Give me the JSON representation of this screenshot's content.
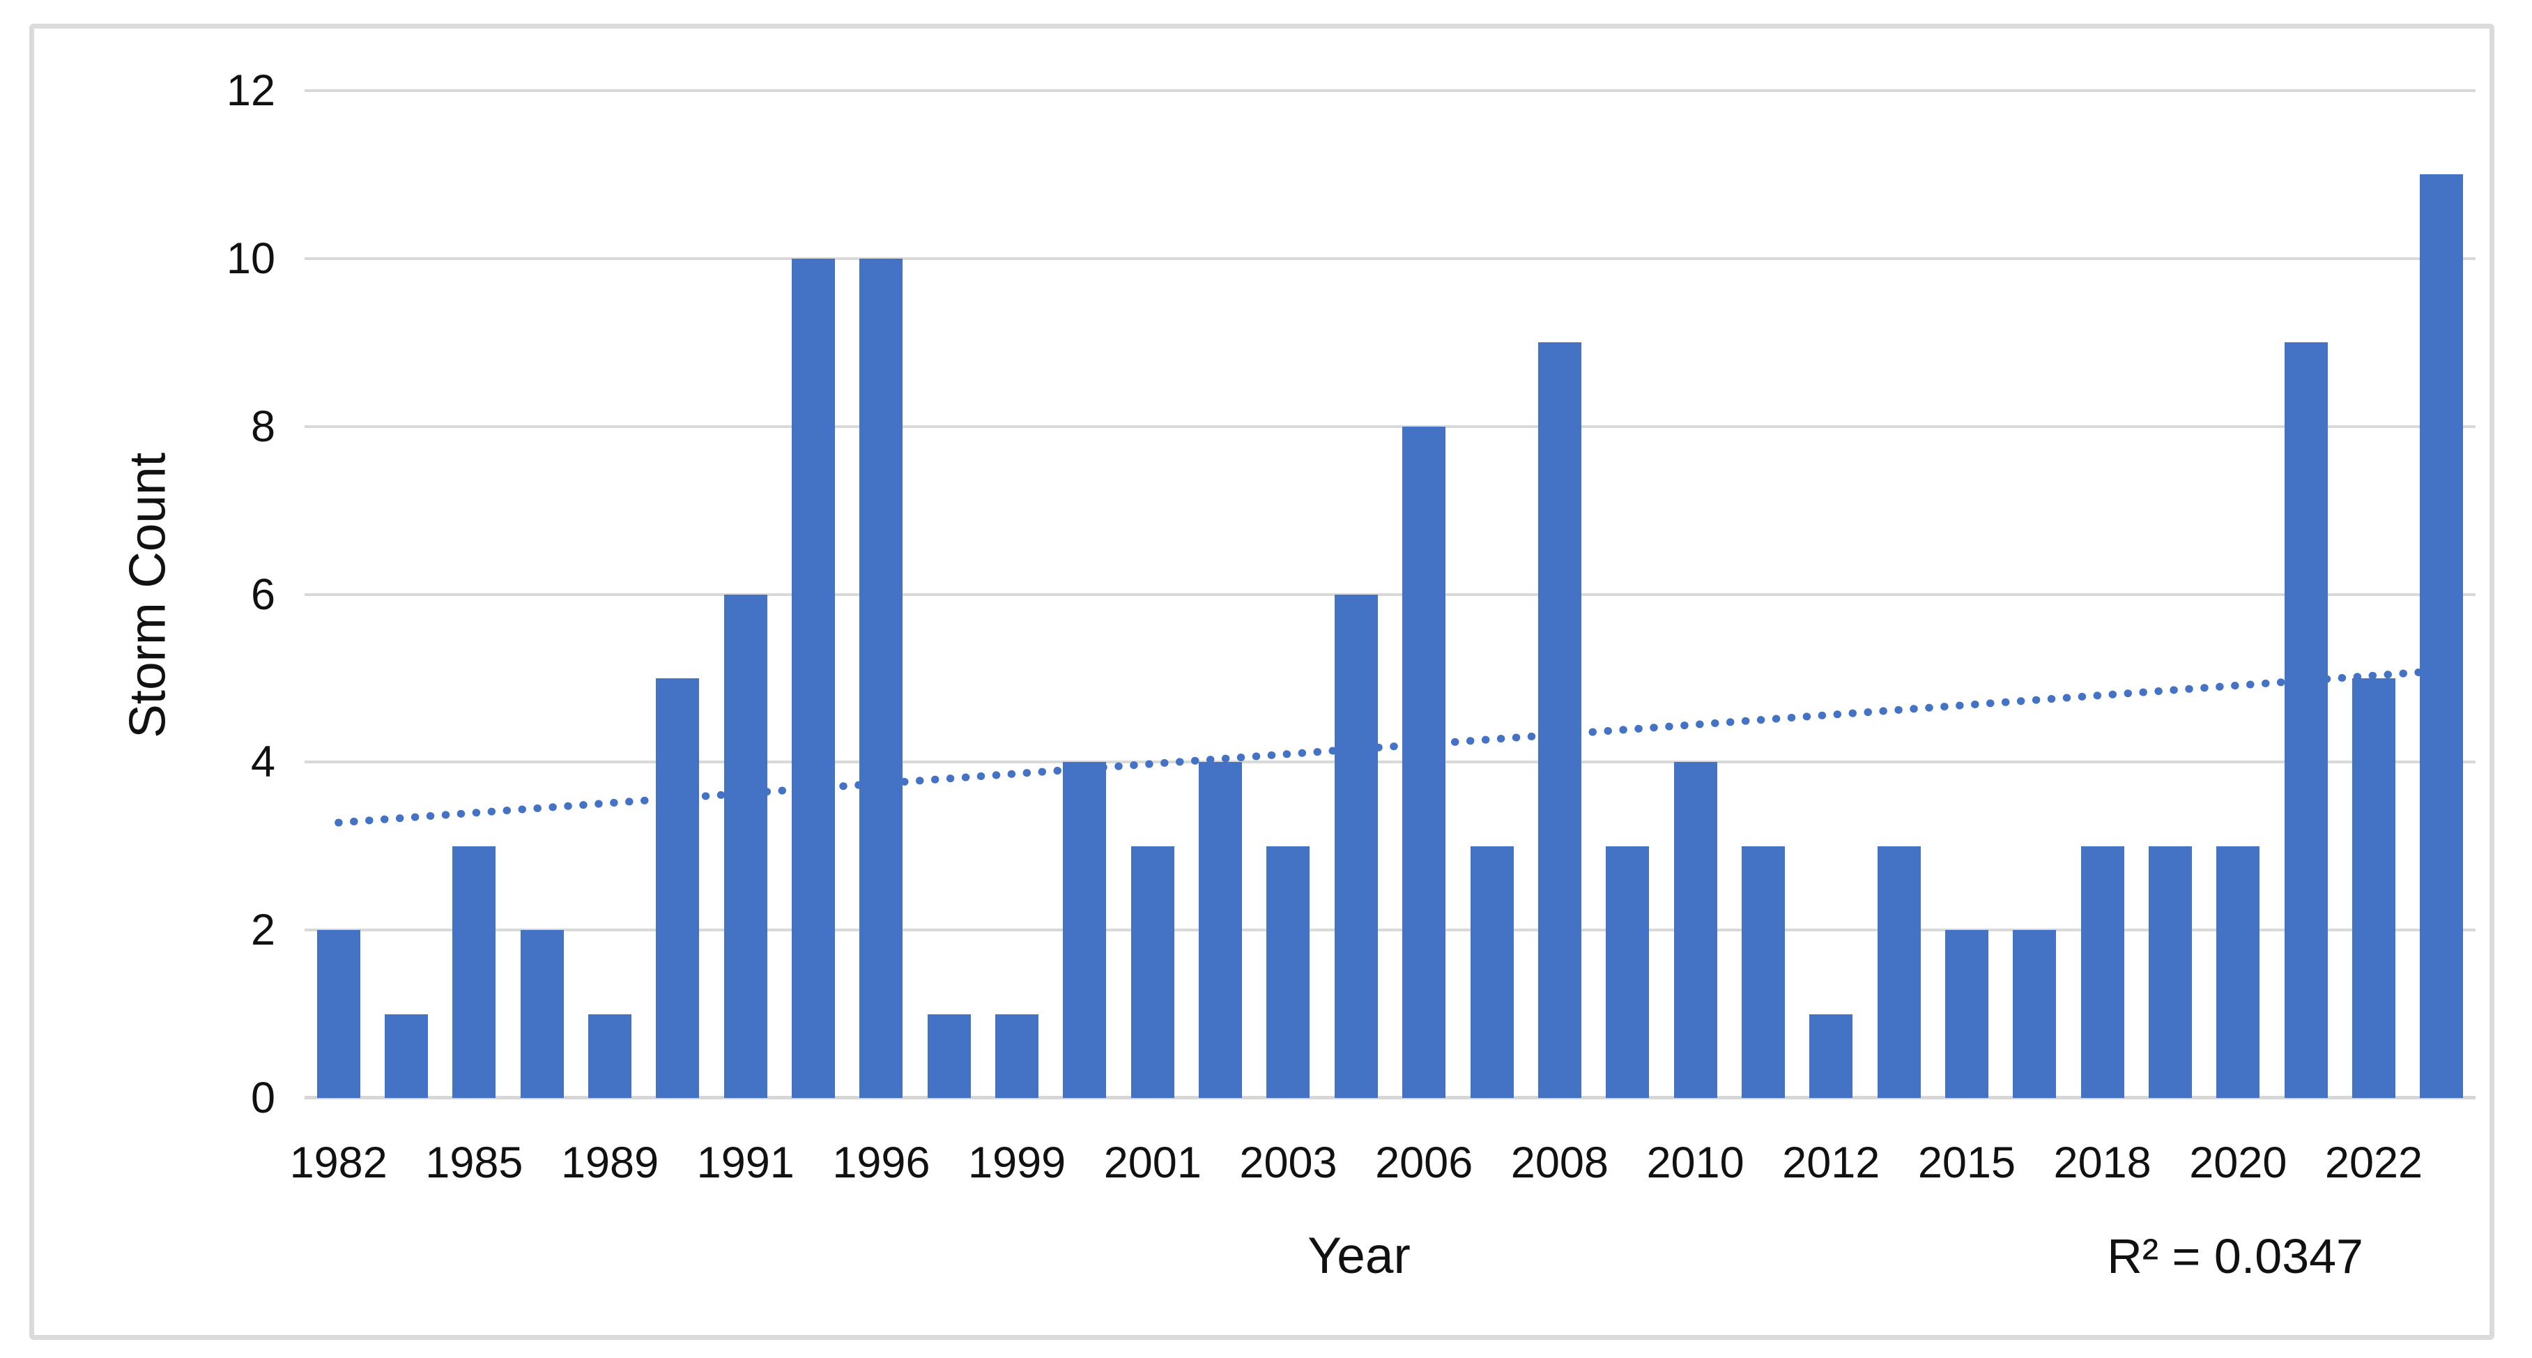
{
  "chart_data": {
    "type": "bar",
    "title": "",
    "ylabel": "Storm Count",
    "xlabel": "Year",
    "ylim": [
      0,
      12
    ],
    "yticks": [
      0,
      2,
      4,
      6,
      8,
      10,
      12
    ],
    "bar_count": 32,
    "values": [
      2,
      1,
      3,
      2,
      1,
      5,
      6,
      10,
      10,
      1,
      1,
      4,
      3,
      4,
      3,
      6,
      8,
      3,
      9,
      3,
      4,
      3,
      1,
      3,
      2,
      2,
      3,
      3,
      3,
      9,
      5,
      11
    ],
    "x_tick_labels": [
      "1982",
      "1985",
      "1989",
      "1991",
      "1996",
      "1999",
      "2001",
      "2003",
      "2006",
      "2008",
      "2010",
      "2012",
      "2015",
      "2018",
      "2020",
      "2022"
    ],
    "x_tick_bar_indices": [
      0,
      2,
      4,
      6,
      8,
      10,
      12,
      14,
      16,
      18,
      20,
      22,
      24,
      26,
      28,
      30
    ],
    "trendline": {
      "style": "dotted",
      "start_value": 3.28,
      "end_value": 5.09,
      "annotation": "R² = 0.0347"
    },
    "legend_position": "none",
    "grid": true,
    "colors": {
      "bar": "#4472C4",
      "trendline": "#4472C4",
      "gridline": "#D9D9D9",
      "axis_line": "#D6D6D6",
      "text": "#111111",
      "frame_border": "#DBDBDB",
      "background": "#FFFFFF"
    }
  }
}
